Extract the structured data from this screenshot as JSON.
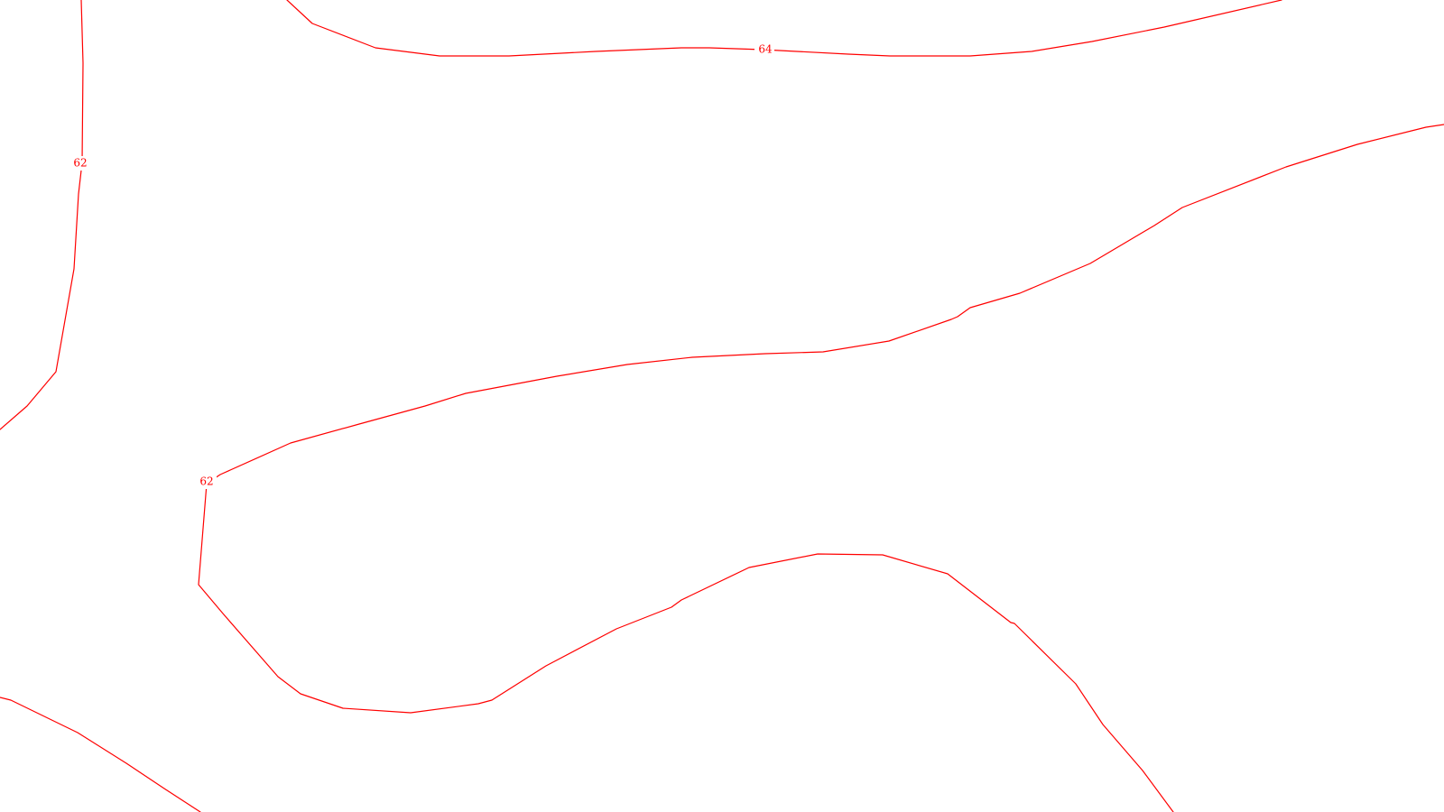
{
  "map": {
    "background": "#ffffff",
    "line_color": "#ff0000",
    "label_color": "#ff0000",
    "contours": [
      {
        "id": "contour-64-top",
        "elevation": "64"
      },
      {
        "id": "contour-62-left",
        "elevation": "62"
      },
      {
        "id": "contour-62-middle",
        "elevation": "62"
      },
      {
        "id": "contour-62-bottom-left"
      },
      {
        "id": "contour-62-bottom-arc"
      }
    ],
    "labels": [
      {
        "id": "label-64",
        "text": "64"
      },
      {
        "id": "label-62-left",
        "text": "62"
      },
      {
        "id": "label-62-middle",
        "text": "62"
      }
    ]
  }
}
